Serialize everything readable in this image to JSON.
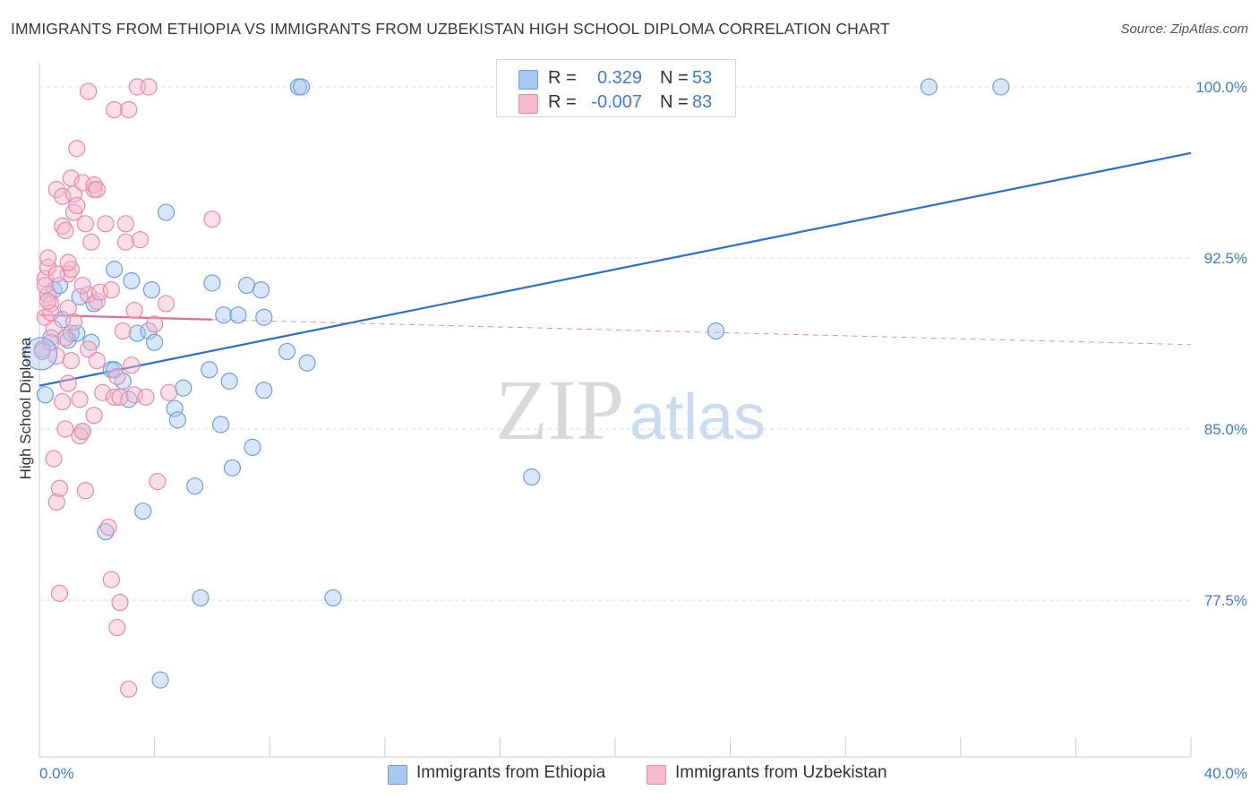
{
  "title": "IMMIGRANTS FROM ETHIOPIA VS IMMIGRANTS FROM UZBEKISTAN HIGH SCHOOL DIPLOMA CORRELATION CHART",
  "source": "Source: ZipAtlas.com",
  "watermark": "ZIPatlas",
  "legend": {
    "r_label": "R =",
    "n_label": "N =",
    "rows": [
      {
        "name": "Immigrants from Ethiopia",
        "r": "0.329",
        "n": "53",
        "color": "#a9c8f0",
        "stroke": "#6d9fe0"
      },
      {
        "name": "Immigrants from Uzbekistan",
        "r": "-0.007",
        "n": "83",
        "color": "#f5b9cc",
        "stroke": "#e98aa8"
      }
    ]
  },
  "chart_data": {
    "type": "scatter",
    "title": "IMMIGRANTS FROM ETHIOPIA VS IMMIGRANTS FROM UZBEKISTAN HIGH SCHOOL DIPLOMA CORRELATION CHART",
    "xlabel": "",
    "ylabel": "High School Diploma",
    "xlim": [
      0,
      40
    ],
    "ylim": [
      71.0,
      101.5
    ],
    "x_tick_labels": [
      "0.0%",
      "40.0%"
    ],
    "y_ticks": [
      77.5,
      85.0,
      92.5,
      100.0
    ],
    "y_tick_labels": [
      "77.5%",
      "85.0%",
      "92.5%",
      "100.0%"
    ],
    "grid": true,
    "series": [
      {
        "name": "Immigrants from Ethiopia",
        "color": "#a9c8f0",
        "stroke": "#6d9fe0",
        "trend": {
          "x": [
            0,
            40
          ],
          "y": [
            86.9,
            97.1
          ],
          "color": "#2a6fcf"
        },
        "points": [
          [
            0.1,
            88.5
          ],
          [
            0.4,
            89.0
          ],
          [
            0.5,
            91.1
          ],
          [
            0.7,
            91.3
          ],
          [
            0.8,
            89.8
          ],
          [
            1.0,
            88.9
          ],
          [
            1.1,
            89.2
          ],
          [
            1.3,
            89.2
          ],
          [
            1.4,
            90.8
          ],
          [
            1.5,
            84.9
          ],
          [
            1.8,
            88.8
          ],
          [
            2.3,
            80.5
          ],
          [
            2.5,
            87.6
          ],
          [
            2.6,
            87.6
          ],
          [
            2.6,
            92.0
          ],
          [
            2.9,
            87.1
          ],
          [
            3.1,
            86.3
          ],
          [
            3.2,
            91.5
          ],
          [
            3.4,
            89.2
          ],
          [
            3.6,
            81.4
          ],
          [
            3.8,
            89.3
          ],
          [
            3.9,
            91.1
          ],
          [
            4.0,
            88.8
          ],
          [
            4.2,
            74.0
          ],
          [
            4.4,
            94.5
          ],
          [
            4.7,
            85.9
          ],
          [
            4.8,
            85.4
          ],
          [
            5.0,
            86.8
          ],
          [
            5.4,
            82.5
          ],
          [
            5.6,
            77.6
          ],
          [
            5.9,
            87.6
          ],
          [
            6.0,
            91.4
          ],
          [
            6.3,
            85.2
          ],
          [
            6.4,
            90.0
          ],
          [
            6.6,
            87.1
          ],
          [
            6.7,
            83.3
          ],
          [
            6.9,
            90.0
          ],
          [
            7.2,
            91.3
          ],
          [
            7.4,
            84.2
          ],
          [
            7.7,
            91.1
          ],
          [
            7.8,
            86.7
          ],
          [
            7.8,
            89.9
          ],
          [
            8.6,
            88.4
          ],
          [
            9.0,
            100.0
          ],
          [
            9.1,
            100.0
          ],
          [
            9.3,
            87.9
          ],
          [
            10.2,
            77.6
          ],
          [
            17.1,
            82.9
          ],
          [
            23.5,
            89.3
          ],
          [
            30.9,
            100.0
          ],
          [
            33.4,
            100.0
          ],
          [
            0.2,
            86.5
          ],
          [
            1.9,
            90.5
          ]
        ]
      },
      {
        "name": "Immigrants from Uzbekistan",
        "color": "#f5b9cc",
        "stroke": "#e98aa8",
        "trend": {
          "x": [
            0,
            6.0
          ],
          "y": [
            90.0,
            89.8
          ],
          "x_dash": [
            6.0,
            40
          ],
          "y_dash": [
            89.8,
            88.7
          ],
          "color": "#e56b93"
        },
        "points": [
          [
            0.1,
            88.4
          ],
          [
            0.2,
            89.9
          ],
          [
            0.2,
            91.6
          ],
          [
            0.3,
            92.1
          ],
          [
            0.3,
            92.5
          ],
          [
            0.3,
            90.9
          ],
          [
            0.4,
            90.5
          ],
          [
            0.4,
            90.1
          ],
          [
            0.5,
            83.7
          ],
          [
            0.6,
            88.2
          ],
          [
            0.6,
            81.8
          ],
          [
            0.6,
            95.5
          ],
          [
            0.7,
            77.8
          ],
          [
            0.7,
            82.4
          ],
          [
            0.8,
            93.9
          ],
          [
            0.8,
            95.2
          ],
          [
            0.8,
            86.2
          ],
          [
            0.9,
            85.0
          ],
          [
            0.9,
            93.7
          ],
          [
            1.0,
            90.3
          ],
          [
            1.0,
            87.0
          ],
          [
            1.0,
            91.8
          ],
          [
            1.1,
            92.0
          ],
          [
            1.1,
            88.0
          ],
          [
            1.1,
            96.0
          ],
          [
            1.2,
            95.3
          ],
          [
            1.2,
            94.5
          ],
          [
            1.3,
            94.8
          ],
          [
            1.3,
            97.3
          ],
          [
            1.4,
            84.7
          ],
          [
            1.4,
            86.3
          ],
          [
            1.5,
            84.9
          ],
          [
            1.5,
            95.8
          ],
          [
            1.6,
            94.0
          ],
          [
            1.6,
            82.3
          ],
          [
            1.7,
            99.8
          ],
          [
            1.7,
            88.5
          ],
          [
            1.7,
            90.9
          ],
          [
            1.8,
            93.2
          ],
          [
            1.9,
            95.5
          ],
          [
            1.9,
            95.7
          ],
          [
            1.9,
            85.6
          ],
          [
            2.0,
            95.5
          ],
          [
            2.0,
            88.0
          ],
          [
            2.0,
            90.6
          ],
          [
            2.1,
            91.0
          ],
          [
            2.2,
            86.6
          ],
          [
            2.3,
            94.0
          ],
          [
            2.4,
            80.7
          ],
          [
            2.5,
            78.4
          ],
          [
            2.5,
            91.1
          ],
          [
            2.6,
            99.0
          ],
          [
            2.6,
            86.4
          ],
          [
            2.7,
            87.3
          ],
          [
            2.7,
            76.3
          ],
          [
            2.8,
            86.4
          ],
          [
            2.8,
            77.4
          ],
          [
            2.9,
            89.3
          ],
          [
            3.0,
            93.2
          ],
          [
            3.0,
            94.0
          ],
          [
            3.1,
            99.0
          ],
          [
            3.1,
            73.6
          ],
          [
            3.2,
            87.8
          ],
          [
            3.3,
            86.5
          ],
          [
            3.3,
            90.2
          ],
          [
            3.4,
            100.0
          ],
          [
            3.5,
            93.3
          ],
          [
            3.7,
            86.4
          ],
          [
            3.8,
            100.0
          ],
          [
            4.0,
            89.6
          ],
          [
            4.1,
            82.7
          ],
          [
            4.4,
            90.5
          ],
          [
            4.5,
            86.6
          ],
          [
            6.0,
            94.2
          ],
          [
            0.2,
            91.3
          ],
          [
            0.3,
            90.6
          ],
          [
            0.5,
            89.4
          ],
          [
            0.6,
            91.8
          ],
          [
            1.2,
            89.7
          ],
          [
            0.9,
            89.0
          ],
          [
            1.0,
            92.3
          ],
          [
            1.5,
            91.3
          ],
          [
            0.4,
            88.8
          ]
        ]
      }
    ]
  },
  "bottom_legend": [
    "Immigrants from Ethiopia",
    "Immigrants from Uzbekistan"
  ]
}
